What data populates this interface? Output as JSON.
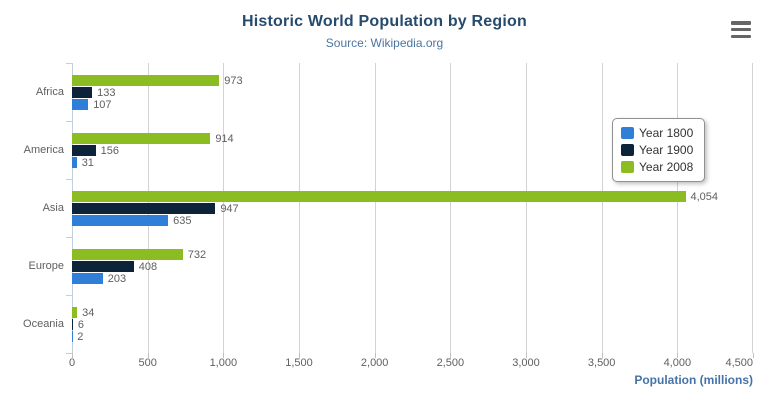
{
  "header": {
    "title": "Historic World Population by Region",
    "subtitle": "Source: Wikipedia.org"
  },
  "context_menu": {
    "icon": "hamburger-icon"
  },
  "chart_data": {
    "type": "bar",
    "orientation": "horizontal",
    "title": "Historic World Population by Region",
    "subtitle": "Source: Wikipedia.org",
    "categories": [
      "Africa",
      "America",
      "Asia",
      "Europe",
      "Oceania"
    ],
    "series": [
      {
        "name": "Year 1800",
        "color": "#2f7ed8",
        "values": [
          107,
          31,
          635,
          203,
          2
        ]
      },
      {
        "name": "Year 1900",
        "color": "#0d233a",
        "values": [
          133,
          156,
          947,
          408,
          6
        ]
      },
      {
        "name": "Year 2008",
        "color": "#8bbc21",
        "values": [
          973,
          914,
          4054,
          732,
          34
        ]
      }
    ],
    "bar_order_top_to_bottom": [
      "Year 2008",
      "Year 1900",
      "Year 1800"
    ],
    "xlabel": "Population (millions)",
    "ylabel": "",
    "xlim": [
      0,
      4500
    ],
    "x_ticks": [
      0,
      500,
      1000,
      1500,
      2000,
      2500,
      3000,
      3500,
      4000,
      4500
    ],
    "tick_format": "thousands-comma",
    "grid": true,
    "legend_position": "right",
    "data_labels": true
  }
}
